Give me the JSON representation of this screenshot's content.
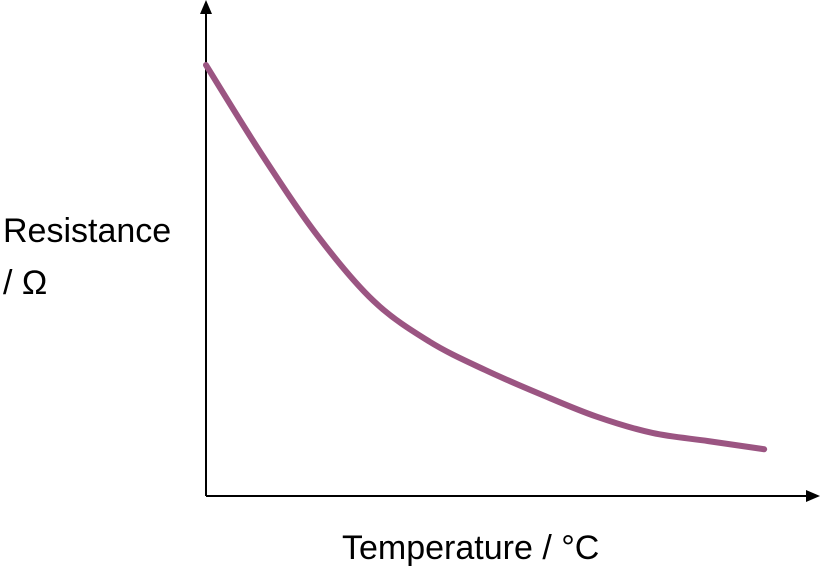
{
  "chart_data": {
    "type": "line",
    "xlabel": "Temperature / °C",
    "ylabel_lines": [
      "Resistance",
      "/ Ω"
    ],
    "x": [
      0,
      10,
      20,
      30,
      40,
      50,
      60,
      70,
      80,
      90,
      100
    ],
    "series": [
      {
        "values": [
          100,
          78,
          58,
          42,
          32,
          25,
          19,
          13.5,
          9.5,
          7.5,
          5.5
        ],
        "color": "#9b5582"
      }
    ],
    "xlim": [
      0,
      110
    ],
    "ylim": [
      -6,
      116
    ],
    "grid": false,
    "legend": "none",
    "axis_ticks": false
  }
}
